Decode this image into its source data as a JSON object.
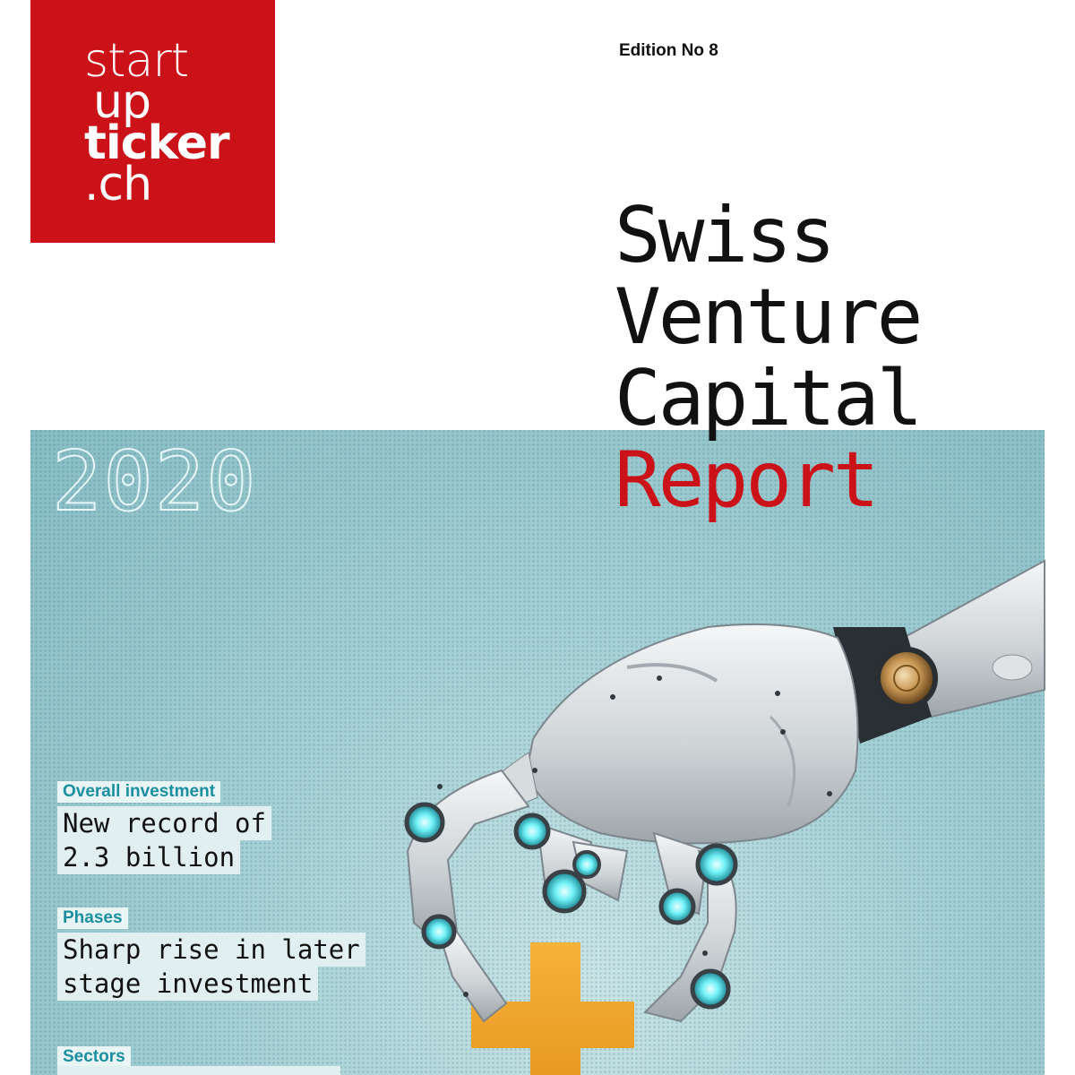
{
  "logo": {
    "line1": "start",
    "line2": "up",
    "line3": "ticker",
    "line4": ".ch"
  },
  "edition": "Edition No 8",
  "title": {
    "line1": "Swiss",
    "line2": "Venture",
    "line3": "Capital",
    "line4": "Report"
  },
  "year": "2020",
  "highlights": [
    {
      "tag": "Overall investment",
      "line1": "New record of",
      "line2": "2.3 billion"
    },
    {
      "tag": "Phases",
      "line1": "Sharp rise in later",
      "line2": "stage investment"
    },
    {
      "tag": "Sectors"
    }
  ],
  "colors": {
    "brand_red": "#cc1219",
    "panel_teal": "#93c6cc",
    "tag_text": "#1a8f9f",
    "cross_orange": "#f0a530"
  }
}
